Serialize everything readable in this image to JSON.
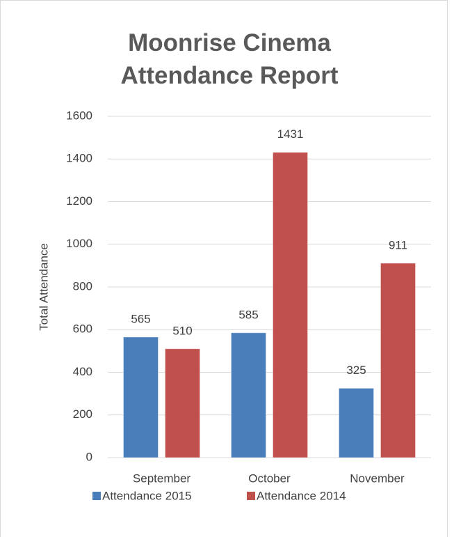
{
  "chart_data": {
    "type": "bar",
    "title": "Moonrise Cinema Attendance Report",
    "y_label": "Total Attendance",
    "categories": [
      "September",
      "October",
      "November"
    ],
    "series": [
      {
        "name": "Attendance 2015",
        "color": "#4a7ebb",
        "values": [
          565,
          585,
          325
        ]
      },
      {
        "name": "Attendance 2014",
        "color": "#c0504d",
        "values": [
          510,
          1431,
          911
        ]
      }
    ],
    "ylim": [
      0,
      1600
    ],
    "yticks": [
      0,
      200,
      400,
      600,
      800,
      1000,
      1200,
      1400,
      1600
    ],
    "grid": true,
    "legend": "bottom"
  }
}
